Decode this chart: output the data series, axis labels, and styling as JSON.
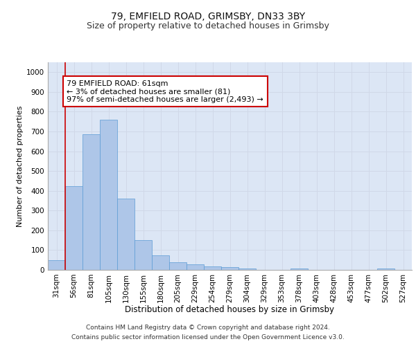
{
  "title_line1": "79, EMFIELD ROAD, GRIMSBY, DN33 3BY",
  "title_line2": "Size of property relative to detached houses in Grimsby",
  "xlabel": "Distribution of detached houses by size in Grimsby",
  "ylabel": "Number of detached properties",
  "categories": [
    "31sqm",
    "56sqm",
    "81sqm",
    "105sqm",
    "130sqm",
    "155sqm",
    "180sqm",
    "205sqm",
    "229sqm",
    "254sqm",
    "279sqm",
    "304sqm",
    "329sqm",
    "353sqm",
    "378sqm",
    "403sqm",
    "428sqm",
    "453sqm",
    "477sqm",
    "502sqm",
    "527sqm"
  ],
  "values": [
    50,
    425,
    685,
    760,
    360,
    150,
    73,
    40,
    27,
    18,
    13,
    8,
    0,
    0,
    8,
    0,
    0,
    0,
    0,
    8,
    0
  ],
  "bar_color": "#aec6e8",
  "bar_edge_color": "#5b9bd5",
  "grid_color": "#d0d8e8",
  "background_color": "#dce6f5",
  "annotation_box_text": "79 EMFIELD ROAD: 61sqm\n← 3% of detached houses are smaller (81)\n97% of semi-detached houses are larger (2,493) →",
  "annotation_box_color": "#ffffff",
  "annotation_box_edge_color": "#cc0000",
  "vline_x": 0.5,
  "vline_color": "#cc0000",
  "ylim": [
    0,
    1050
  ],
  "yticks": [
    0,
    100,
    200,
    300,
    400,
    500,
    600,
    700,
    800,
    900,
    1000
  ],
  "footnote_line1": "Contains HM Land Registry data © Crown copyright and database right 2024.",
  "footnote_line2": "Contains public sector information licensed under the Open Government Licence v3.0.",
  "title1_fontsize": 10,
  "title2_fontsize": 9,
  "xlabel_fontsize": 8.5,
  "ylabel_fontsize": 8,
  "tick_fontsize": 7.5,
  "annot_fontsize": 8,
  "footnote_fontsize": 6.5
}
